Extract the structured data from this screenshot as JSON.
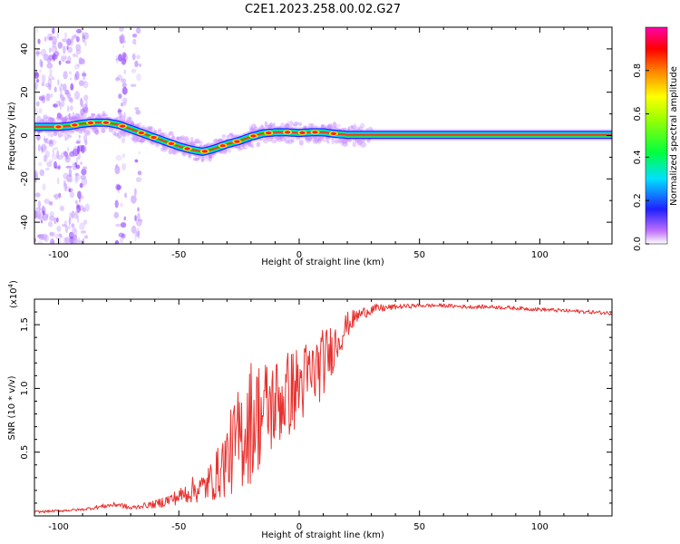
{
  "figure_title": "C2E1.2023.258.00.02.G27",
  "colors": {
    "snr_line": "#e8322f",
    "ridge_core": "#ff2a2a",
    "ridge_mid": "#22dd22",
    "ridge_edge": "#00d8ff",
    "ridge_outer": "#2020ff",
    "halo": "#c080ff"
  },
  "chart_data": [
    {
      "type": "heatmap",
      "title": "",
      "xlabel": "Height of straight line (km)",
      "ylabel": "Frequency (Hz)",
      "xlim": [
        -110,
        130
      ],
      "ylim": [
        -50,
        50
      ],
      "x_ticks": [
        -100,
        -50,
        0,
        50,
        100
      ],
      "y_ticks": [
        -40,
        -20,
        0,
        20,
        40
      ],
      "colorbar": {
        "label": "Normalized spectral amplitude",
        "range": [
          0,
          1
        ],
        "ticks": [
          "0.0",
          "0.2",
          "0.4",
          "0.6",
          "0.8"
        ],
        "colormap": "rainbow (white-violet-blue-cyan-green-yellow-red-magenta)"
      },
      "ridge": {
        "description": "Frequency of maximum spectral amplitude vs height",
        "x": [
          -105,
          -100,
          -95,
          -90,
          -85,
          -80,
          -75,
          -70,
          -65,
          -60,
          -55,
          -50,
          -45,
          -40,
          -35,
          -30,
          -25,
          -20,
          -15,
          -10,
          -5,
          0,
          5,
          10,
          15,
          20,
          130
        ],
        "y": [
          4,
          4,
          4.5,
          5.5,
          6,
          6,
          5,
          3,
          1,
          -1,
          -3,
          -5,
          -6.5,
          -7.5,
          -6,
          -4,
          -2.5,
          -0.5,
          1,
          1.5,
          1.5,
          1.2,
          1.5,
          1.5,
          0.8,
          0.3,
          0.3
        ]
      }
    },
    {
      "type": "line",
      "title": "",
      "xlabel": "Height of straight line (km)",
      "ylabel": "SNR (10 * v/v)",
      "y_scale_label": "(x10",
      "y_scale_exponent": "4",
      "y_scale_suffix": ")",
      "xlim": [
        -110,
        130
      ],
      "ylim": [
        0,
        1.7
      ],
      "x_ticks": [
        -100,
        -50,
        0,
        50,
        100
      ],
      "y_ticks": [
        "0.5",
        "1.0",
        "1.5"
      ],
      "series": [
        {
          "x": [
            -110,
            -100,
            -90,
            -80,
            -75,
            -70,
            -65,
            -60,
            -55,
            -50,
            -45,
            -40,
            -35,
            -30,
            -25,
            -20,
            -15,
            -10,
            -5,
            0,
            5,
            10,
            15,
            20,
            25,
            30,
            35,
            40,
            50,
            60,
            70,
            80,
            90,
            100,
            110,
            120,
            130
          ],
          "y": [
            0.03,
            0.04,
            0.05,
            0.08,
            0.09,
            0.06,
            0.08,
            0.09,
            0.12,
            0.15,
            0.2,
            0.22,
            0.3,
            0.45,
            0.6,
            0.75,
            0.82,
            0.88,
            0.95,
            1.02,
            1.1,
            1.2,
            1.35,
            1.5,
            1.58,
            1.62,
            1.63,
            1.64,
            1.65,
            1.65,
            1.64,
            1.64,
            1.63,
            1.62,
            1.61,
            1.6,
            1.59
          ],
          "noise": [
            0.01,
            0.01,
            0.01,
            0.02,
            0.02,
            0.02,
            0.02,
            0.03,
            0.05,
            0.06,
            0.1,
            0.12,
            0.18,
            0.3,
            0.42,
            0.5,
            0.42,
            0.38,
            0.35,
            0.33,
            0.3,
            0.27,
            0.18,
            0.1,
            0.05,
            0.04,
            0.03,
            0.02,
            0.015,
            0.015,
            0.015,
            0.015,
            0.015,
            0.015,
            0.015,
            0.015,
            0.015
          ]
        }
      ]
    }
  ]
}
